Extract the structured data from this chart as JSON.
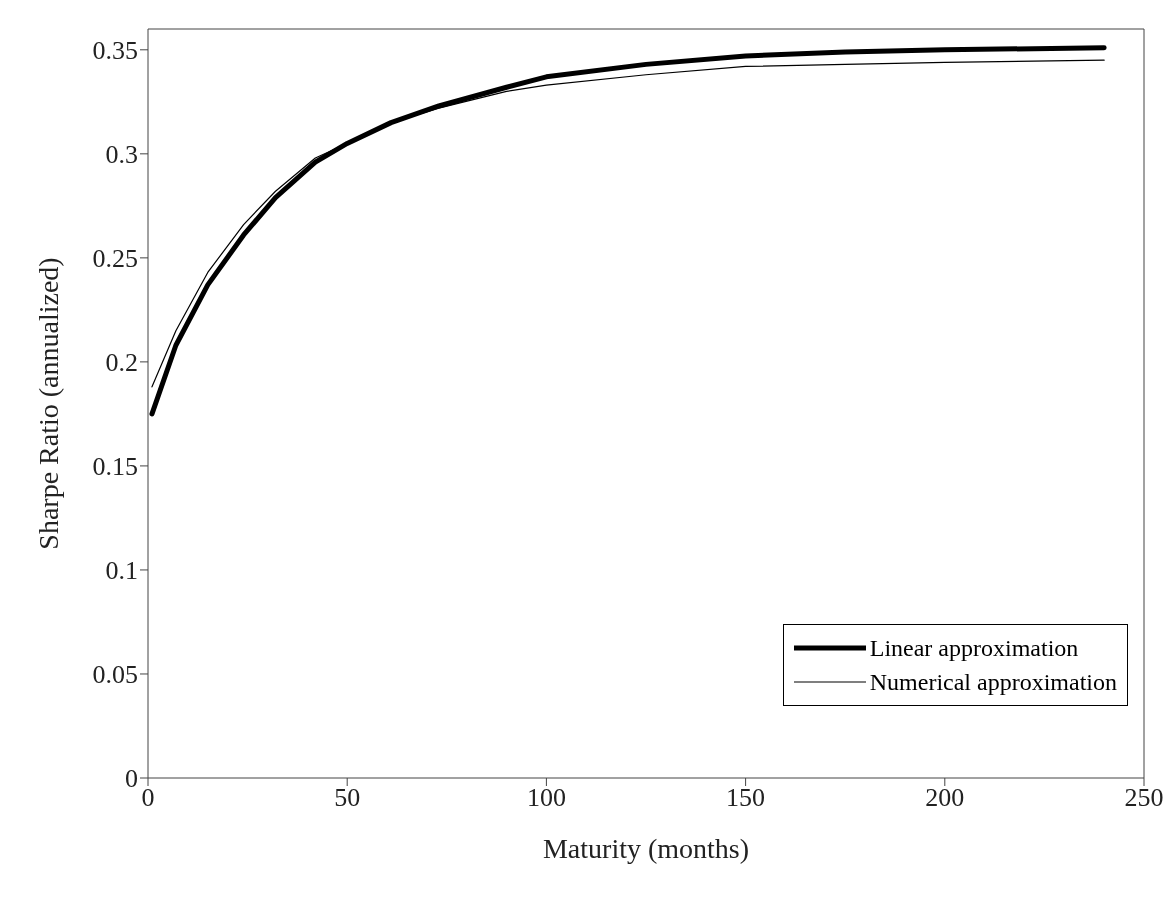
{
  "chart_data": {
    "type": "line",
    "xlabel": "Maturity (months)",
    "ylabel": "Sharpe Ratio (annualized)",
    "x": [
      1,
      7,
      15,
      24,
      32,
      42,
      50,
      61,
      73,
      90,
      100,
      125,
      150,
      175,
      200,
      240
    ],
    "series": [
      {
        "name": "Linear approximation",
        "color": "#000000",
        "values": [
          0.175,
          0.208,
          0.237,
          0.261,
          0.279,
          0.296,
          0.305,
          0.315,
          0.323,
          0.332,
          0.337,
          0.343,
          0.347,
          0.349,
          0.35,
          0.351
        ]
      },
      {
        "name": "Numerical approximation",
        "color": "#000000",
        "values": [
          0.188,
          0.215,
          0.243,
          0.266,
          0.282,
          0.298,
          0.305,
          0.315,
          0.322,
          0.33,
          0.333,
          0.338,
          0.342,
          0.343,
          0.344,
          0.345
        ]
      }
    ],
    "xlim": [
      0,
      250
    ],
    "xticks": [
      0,
      50,
      100,
      150,
      200,
      250
    ],
    "ylim": [
      0,
      0.36
    ],
    "yticks": [
      0,
      0.05,
      0.1,
      0.15,
      0.2,
      0.25,
      0.3,
      0.35
    ],
    "grid": false,
    "legend": "bottom right",
    "marker": "none",
    "line_style": "solid"
  }
}
